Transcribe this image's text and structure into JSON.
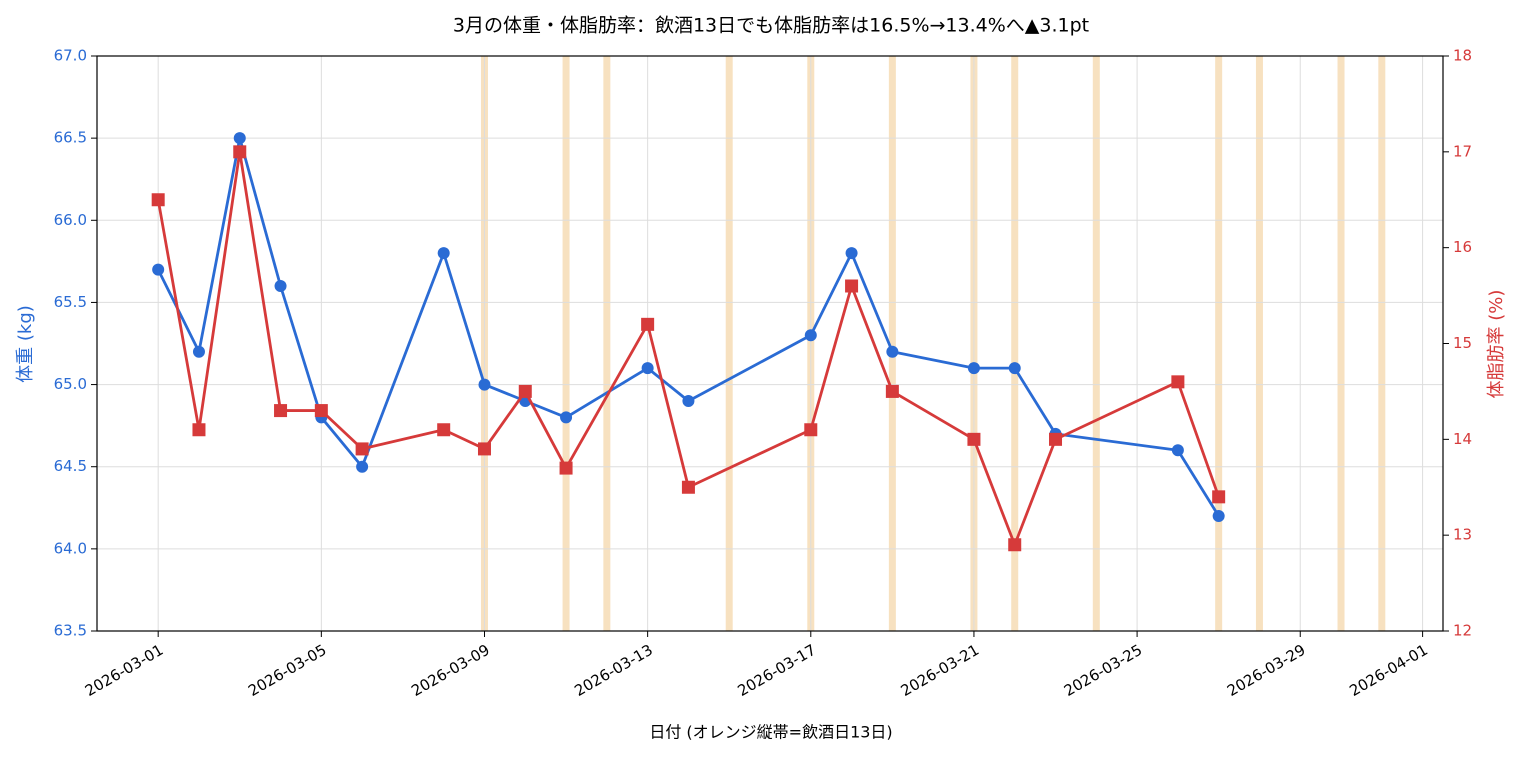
{
  "chart_data": {
    "type": "line",
    "title": "3月の体重・体脂肪率：飲酒13日でも体脂肪率は16.5%→13.4%へ▲3.1pt",
    "x_label": "日付 (オレンジ縦帯=飲酒日13日)",
    "y_label": "体重 (kg)",
    "y2_label": "体脂肪率 (%)",
    "x": [
      "2026-03-01",
      "2026-03-02",
      "2026-03-03",
      "2026-03-04",
      "2026-03-05",
      "2026-03-06",
      "2026-03-08",
      "2026-03-09",
      "2026-03-10",
      "2026-03-11",
      "2026-03-13",
      "2026-03-14",
      "2026-03-17",
      "2026-03-18",
      "2026-03-19",
      "2026-03-21",
      "2026-03-22",
      "2026-03-23",
      "2026-03-26",
      "2026-03-27"
    ],
    "series": [
      {
        "color": "#2a6bd4",
        "marker": "circle",
        "values": [
          65.7,
          65.2,
          66.5,
          65.6,
          64.8,
          64.5,
          65.8,
          65.0,
          64.9,
          64.8,
          65.1,
          64.9,
          65.3,
          65.8,
          65.2,
          65.1,
          65.1,
          64.7,
          64.6,
          64.2
        ]
      },
      {
        "color": "#d63a3a",
        "marker": "square",
        "axis": "y2",
        "values": [
          16.5,
          14.1,
          17.0,
          14.3,
          14.3,
          13.9,
          14.1,
          13.9,
          14.5,
          13.7,
          15.2,
          13.5,
          14.1,
          15.6,
          14.5,
          14.0,
          12.9,
          14.0,
          14.6,
          13.4
        ]
      }
    ],
    "drinking_days": [
      "2026-03-09",
      "2026-03-11",
      "2026-03-12",
      "2026-03-15",
      "2026-03-17",
      "2026-03-19",
      "2026-03-21",
      "2026-03-22",
      "2026-03-24",
      "2026-03-27",
      "2026-03-28",
      "2026-03-30",
      "2026-03-31"
    ],
    "band_color": "#f5d9b0",
    "xlim": [
      "2026-02-27T12:00:00Z",
      "2026-04-01T12:00:00Z"
    ],
    "xticks": [
      "2026-03-01",
      "2026-03-05",
      "2026-03-09",
      "2026-03-13",
      "2026-03-17",
      "2026-03-21",
      "2026-03-25",
      "2026-03-29",
      "2026-04-01"
    ],
    "ylim": [
      63.5,
      67.0
    ],
    "yticks": [
      63.5,
      {
        "value": 64.0,
        "label": "64.0"
      },
      64.5,
      {
        "value": 65.0,
        "label": "65.0"
      },
      65.5,
      {
        "value": 66.0,
        "label": "66.0"
      },
      66.5,
      {
        "value": 67.0,
        "label": "67.0"
      }
    ],
    "y2lim": [
      12,
      18
    ],
    "y2ticks": [
      12,
      13,
      14,
      15,
      16,
      17,
      18
    ],
    "grid": true
  }
}
